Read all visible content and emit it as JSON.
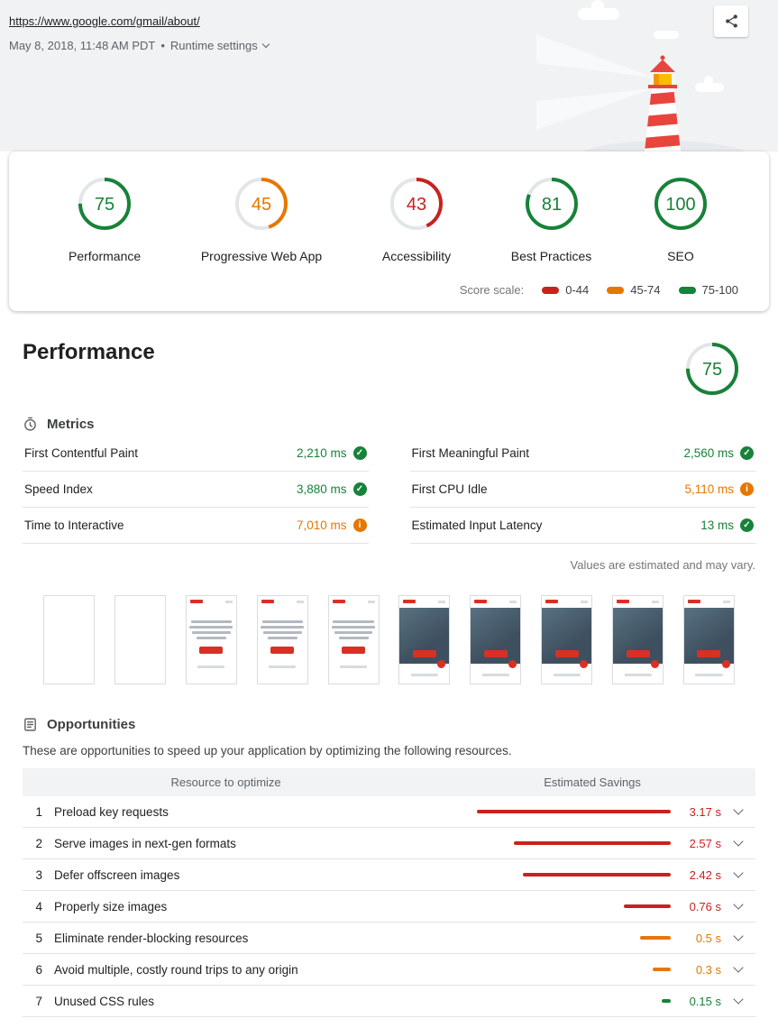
{
  "colors": {
    "pass": "#178239",
    "average": "#e67700",
    "fail": "#c7221f"
  },
  "icons": {
    "check": "✓",
    "info": "i"
  },
  "header": {
    "url": "https://www.google.com/gmail/about/",
    "date_time": "May 8, 2018, 11:48 AM PDT",
    "separator": "•",
    "runtime_settings": "Runtime settings"
  },
  "scores": {
    "items": [
      {
        "label": "Performance",
        "value": 75,
        "level": "pass"
      },
      {
        "label": "Progressive Web App",
        "value": 45,
        "level": "average"
      },
      {
        "label": "Accessibility",
        "value": 43,
        "level": "fail"
      },
      {
        "label": "Best Practices",
        "value": 81,
        "level": "pass"
      },
      {
        "label": "SEO",
        "value": 100,
        "level": "pass"
      }
    ],
    "scale": {
      "label": "Score scale:",
      "ranges": [
        {
          "label": "0-44",
          "level": "fail"
        },
        {
          "label": "45-74",
          "level": "average"
        },
        {
          "label": "75-100",
          "level": "pass"
        }
      ]
    }
  },
  "performance": {
    "title": "Performance",
    "score": 75,
    "metrics_title": "Metrics",
    "metrics": [
      {
        "label": "First Contentful Paint",
        "value": "2,210 ms",
        "status": "pass"
      },
      {
        "label": "First Meaningful Paint",
        "value": "2,560 ms",
        "status": "pass"
      },
      {
        "label": "Speed Index",
        "value": "3,880 ms",
        "status": "pass"
      },
      {
        "label": "First CPU Idle",
        "value": "5,110 ms",
        "status": "average"
      },
      {
        "label": "Time to Interactive",
        "value": "7,010 ms",
        "status": "average"
      },
      {
        "label": "Estimated Input Latency",
        "value": "13 ms",
        "status": "pass"
      }
    ],
    "estimate_note": "Values are estimated and may vary.",
    "filmstrip": [
      "blank",
      "blank",
      "text",
      "text",
      "text",
      "image",
      "image",
      "image",
      "image",
      "image"
    ]
  },
  "opportunities": {
    "title": "Opportunities",
    "description": "These are opportunities to speed up your application by optimizing the following resources.",
    "col_resource": "Resource to optimize",
    "col_savings": "Estimated Savings",
    "items": [
      {
        "num": 1,
        "label": "Preload key requests",
        "savings": "3.17 s",
        "seconds": 3.17,
        "level": "fail"
      },
      {
        "num": 2,
        "label": "Serve images in next-gen formats",
        "savings": "2.57 s",
        "seconds": 2.57,
        "level": "fail"
      },
      {
        "num": 3,
        "label": "Defer offscreen images",
        "savings": "2.42 s",
        "seconds": 2.42,
        "level": "fail"
      },
      {
        "num": 4,
        "label": "Properly size images",
        "savings": "0.76 s",
        "seconds": 0.76,
        "level": "fail"
      },
      {
        "num": 5,
        "label": "Eliminate render-blocking resources",
        "savings": "0.5 s",
        "seconds": 0.5,
        "level": "average"
      },
      {
        "num": 6,
        "label": "Avoid multiple, costly round trips to any origin",
        "savings": "0.3 s",
        "seconds": 0.3,
        "level": "average"
      },
      {
        "num": 7,
        "label": "Unused CSS rules",
        "savings": "0.15 s",
        "seconds": 0.15,
        "level": "pass"
      }
    ]
  }
}
